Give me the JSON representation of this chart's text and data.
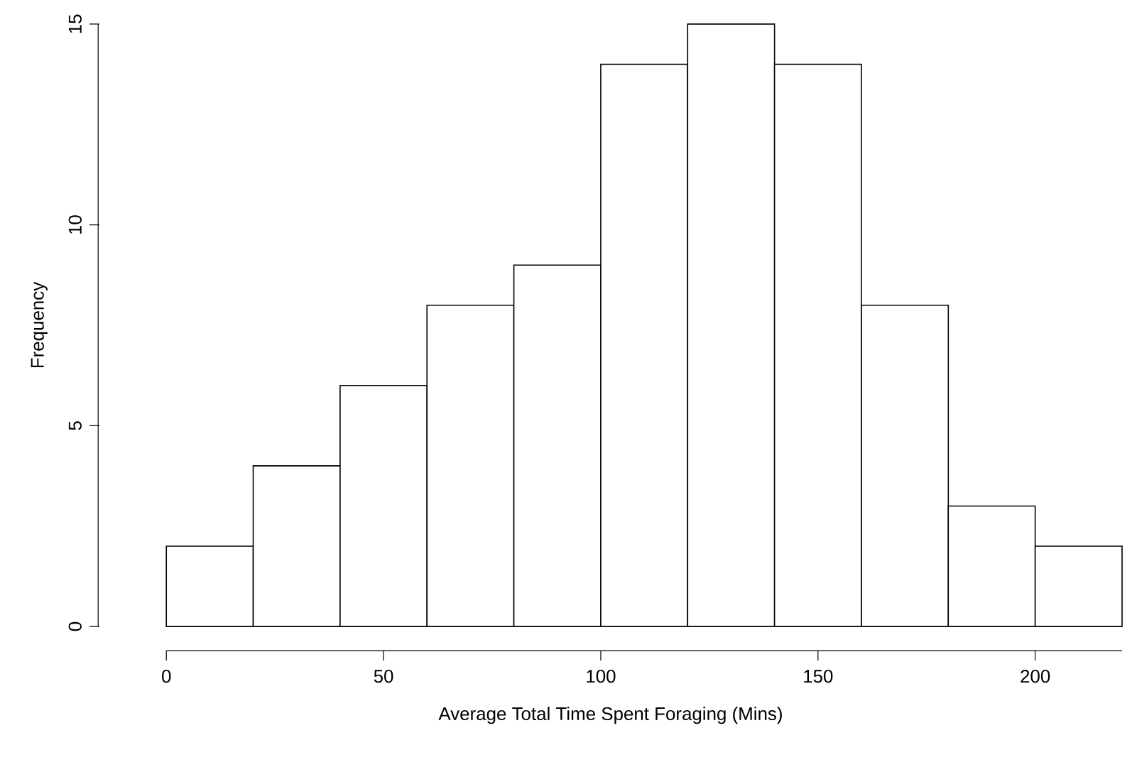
{
  "chart_data": {
    "type": "histogram",
    "xlabel": "Average Total Time Spent Foraging (Mins)",
    "ylabel": "Frequency",
    "bins": [
      0,
      20,
      40,
      60,
      80,
      100,
      120,
      140,
      160,
      180,
      200,
      220
    ],
    "values": [
      2,
      4,
      6,
      8,
      9,
      14,
      15,
      14,
      8,
      3,
      2
    ],
    "color": "#ffffff",
    "xlim": [
      0,
      220
    ],
    "ylim": [
      0,
      15
    ],
    "xticks": [
      0,
      50,
      100,
      150,
      200
    ],
    "yticks": [
      0,
      5,
      10,
      15
    ],
    "grid": false
  }
}
